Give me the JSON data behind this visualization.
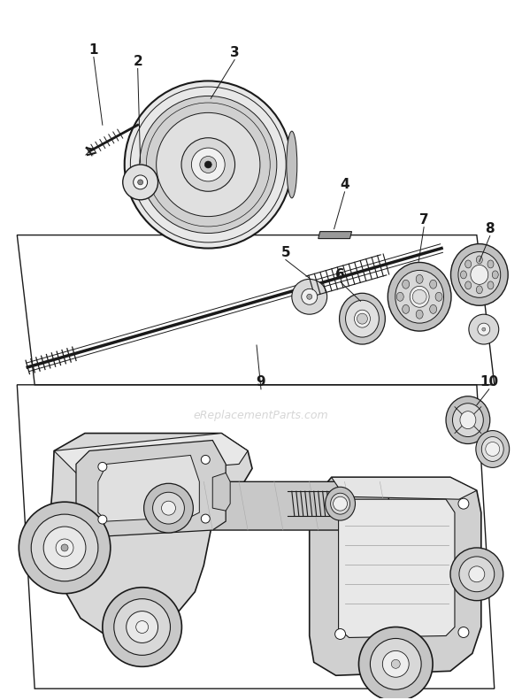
{
  "bg_color": "#ffffff",
  "lc": "#1a1a1a",
  "watermark": "eReplacementParts.com",
  "figsize": [
    5.9,
    7.91
  ],
  "dpi": 100
}
